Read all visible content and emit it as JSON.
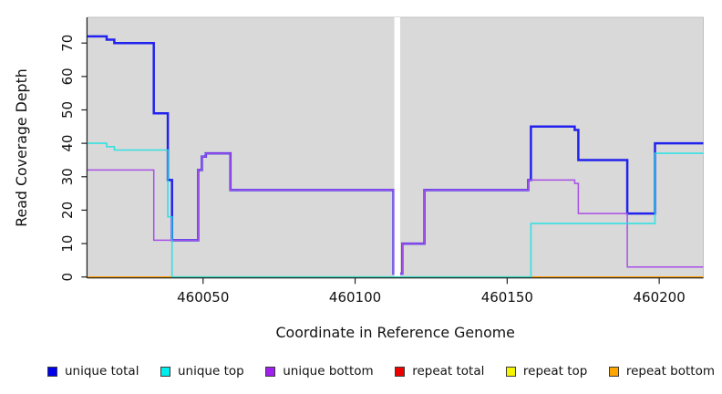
{
  "chart_data": {
    "type": "line",
    "subtype": "step",
    "title": "",
    "xlabel": "Coordinate in Reference Genome",
    "ylabel": "Read Coverage Depth",
    "x_ticks": [
      460050,
      460100,
      460150,
      460200
    ],
    "y_ticks": [
      0,
      10,
      20,
      30,
      40,
      50,
      60,
      70
    ],
    "xlim": [
      460012,
      460214.5
    ],
    "ylim": [
      0,
      77.7
    ],
    "grid": "off",
    "panel_bg": "#d9d9d9",
    "panel_border": "#bfbfbf",
    "gap": {
      "x_start": 460112.9,
      "x_end": 460114.8,
      "fill": "#ffffff"
    },
    "legend_position": "bottom",
    "series": [
      {
        "name": "unique total",
        "color": "#2222ee",
        "width": 2.5,
        "opacity": 1,
        "points": [
          [
            460012,
            72
          ],
          [
            460018.3,
            71
          ],
          [
            460020.8,
            70
          ],
          [
            460033.8,
            49
          ],
          [
            460038.4,
            29
          ],
          [
            460039.8,
            11
          ],
          [
            460048.4,
            32
          ],
          [
            460049.6,
            36
          ],
          [
            460050.9,
            37
          ],
          [
            460059,
            26
          ],
          [
            460112.6,
            1
          ],
          [
            460115.5,
            10
          ],
          [
            460122.8,
            26
          ],
          [
            460156.9,
            29
          ],
          [
            460157.8,
            45
          ],
          [
            460172.2,
            44
          ],
          [
            460173.4,
            35
          ],
          [
            460189.5,
            19
          ],
          [
            460198.6,
            40
          ],
          [
            460214.5,
            40
          ]
        ]
      },
      {
        "name": "unique top",
        "color": "#17e2e2",
        "width": 1.6,
        "opacity": 0.85,
        "points": [
          [
            460012,
            40
          ],
          [
            460018.3,
            39
          ],
          [
            460020.8,
            38
          ],
          [
            460038.4,
            18
          ],
          [
            460039.8,
            0
          ],
          [
            460157.8,
            16
          ],
          [
            460198.6,
            37
          ],
          [
            460214.5,
            37
          ]
        ]
      },
      {
        "name": "unique bottom",
        "color": "#a84fe8",
        "width": 1.5,
        "opacity": 1,
        "points": [
          [
            460012,
            32
          ],
          [
            460033.8,
            11
          ],
          [
            460048.4,
            32
          ],
          [
            460049.6,
            36
          ],
          [
            460050.9,
            37
          ],
          [
            460059,
            26
          ],
          [
            460112.6,
            1
          ],
          [
            460115.5,
            10
          ],
          [
            460122.8,
            26
          ],
          [
            460156.9,
            29
          ],
          [
            460172.2,
            28
          ],
          [
            460173.4,
            19
          ],
          [
            460189.5,
            3
          ],
          [
            460214.5,
            3
          ]
        ]
      },
      {
        "name": "repeat total",
        "color": "#ee1111",
        "width": 1.5,
        "opacity": 1,
        "points": [
          [
            460012,
            0
          ],
          [
            460214.5,
            0
          ]
        ]
      },
      {
        "name": "repeat top",
        "color": "#f2f200",
        "width": 1.5,
        "opacity": 1,
        "points": [
          [
            460012,
            0
          ],
          [
            460214.5,
            0
          ]
        ]
      },
      {
        "name": "repeat bottom",
        "color": "#ff9d00",
        "width": 1.5,
        "opacity": 1,
        "points": [
          [
            460012,
            0
          ],
          [
            460214.5,
            0
          ]
        ]
      }
    ]
  },
  "legend": {
    "items": [
      {
        "label": "unique total",
        "color": "#0000ee"
      },
      {
        "label": "unique top",
        "color": "#00eeee"
      },
      {
        "label": "unique bottom",
        "color": "#a020f0"
      },
      {
        "label": "repeat total",
        "color": "#ee0000"
      },
      {
        "label": "repeat top",
        "color": "#f5f500"
      },
      {
        "label": "repeat bottom",
        "color": "#ffa500"
      }
    ]
  }
}
